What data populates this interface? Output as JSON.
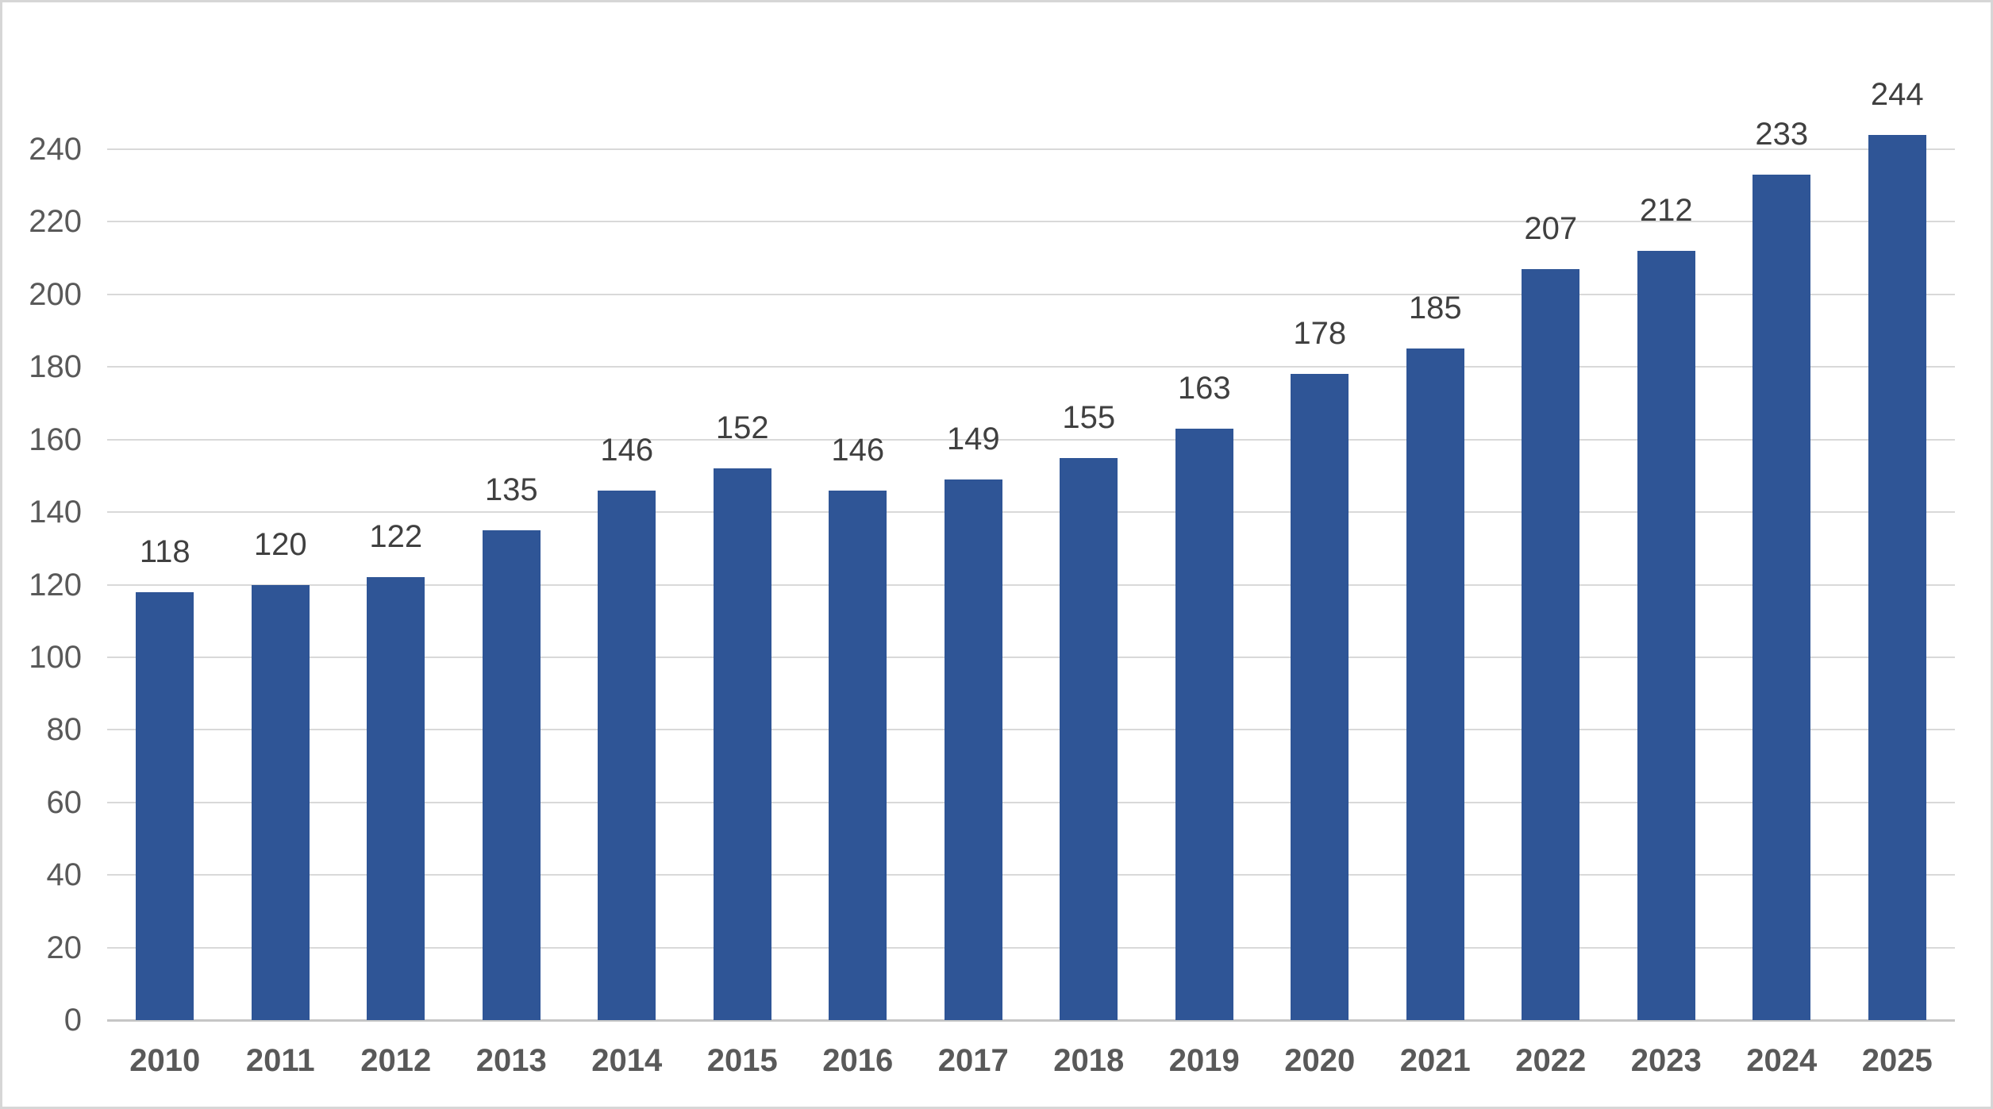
{
  "chart_data": {
    "type": "bar",
    "categories": [
      "2010",
      "2011",
      "2012",
      "2013",
      "2014",
      "2015",
      "2016",
      "2017",
      "2018",
      "2019",
      "2020",
      "2021",
      "2022",
      "2023",
      "2024",
      "2025"
    ],
    "values": [
      118,
      120,
      122,
      135,
      146,
      152,
      146,
      149,
      155,
      163,
      178,
      185,
      207,
      212,
      233,
      244
    ],
    "data_labels": [
      "118",
      "120",
      "122",
      "135",
      "146",
      "152",
      "146",
      "149",
      "155",
      "163",
      "178",
      "185",
      "207",
      "212",
      "233",
      "244"
    ],
    "title": "",
    "xlabel": "",
    "ylabel": "",
    "ylim": [
      0,
      240
    ],
    "y_ticks": [
      0,
      20,
      40,
      60,
      80,
      100,
      120,
      140,
      160,
      180,
      200,
      220,
      240
    ],
    "grid": true,
    "legend": "none",
    "colors": {
      "bar": "#2F5596",
      "gridline": "#D9D9D9",
      "axis_line": "#C6C6C6",
      "data_label": "#404040",
      "tick_label": "#595959",
      "canvas_border": "#D6D6D6",
      "background": "#FFFFFF"
    }
  }
}
